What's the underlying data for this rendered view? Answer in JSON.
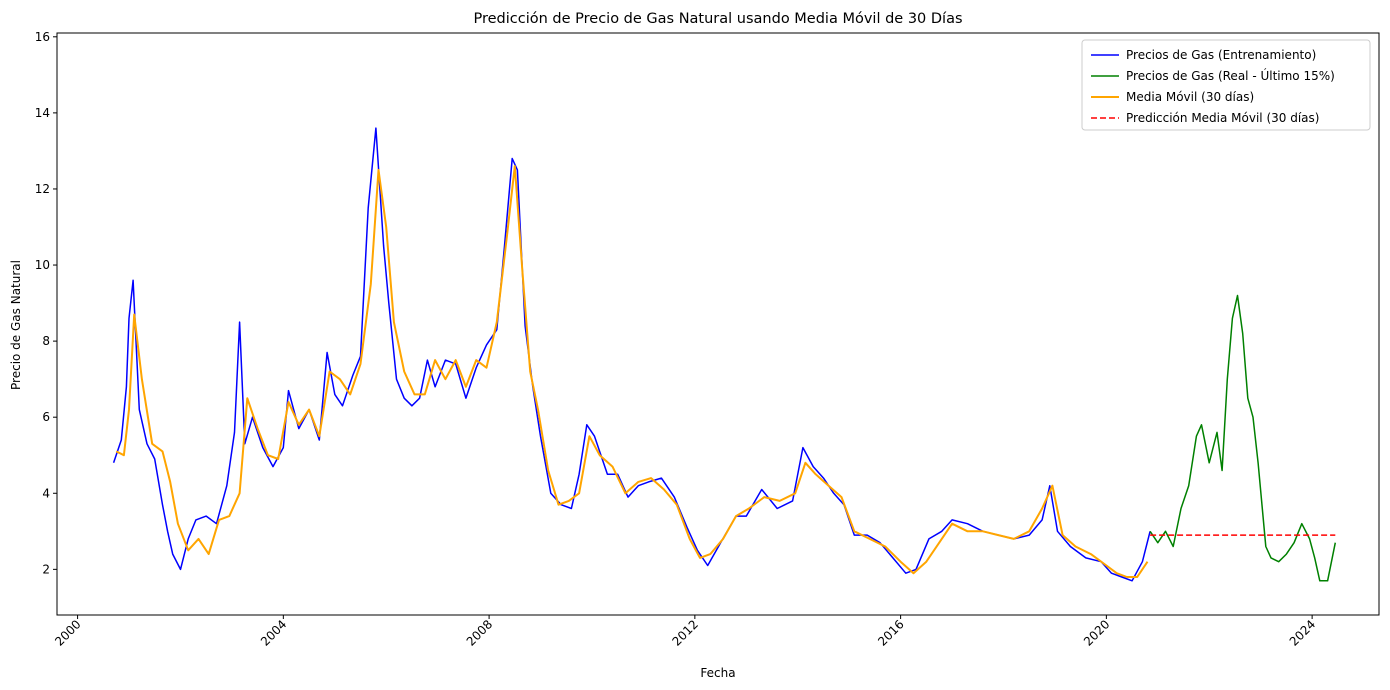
{
  "chart_data": {
    "type": "line",
    "title": "Predicción de Precio de Gas Natural usando Media Móvil de 30 Días",
    "xlabel": "Fecha",
    "ylabel": "Precio de Gas Natural",
    "xlim": [
      1999.6,
      2025.3
    ],
    "ylim": [
      0.8,
      16.1
    ],
    "xticks": [
      2000,
      2004,
      2008,
      2012,
      2016,
      2020,
      2024
    ],
    "xtick_labels": [
      "2000",
      "2004",
      "2008",
      "2012",
      "2016",
      "2020",
      "2024"
    ],
    "yticks": [
      2,
      4,
      6,
      8,
      10,
      12,
      14,
      16
    ],
    "ytick_labels": [
      "2",
      "4",
      "6",
      "8",
      "10",
      "12",
      "14",
      "16"
    ],
    "grid": false,
    "legend_position": "top-right",
    "series": [
      {
        "name": "Precios de Gas (Entrenamiento)",
        "color": "#0000ff",
        "style": "solid",
        "x": [
          2000.7,
          2000.85,
          2000.95,
          2001.0,
          2001.08,
          2001.2,
          2001.35,
          2001.5,
          2001.65,
          2001.75,
          2001.85,
          2002.0,
          2002.15,
          2002.3,
          2002.5,
          2002.7,
          2002.9,
          2003.05,
          2003.15,
          2003.25,
          2003.4,
          2003.6,
          2003.8,
          2004.0,
          2004.1,
          2004.3,
          2004.5,
          2004.7,
          2004.85,
          2005.0,
          2005.15,
          2005.35,
          2005.5,
          2005.65,
          2005.8,
          2005.95,
          2006.05,
          2006.2,
          2006.35,
          2006.5,
          2006.65,
          2006.8,
          2006.95,
          2007.15,
          2007.35,
          2007.55,
          2007.75,
          2007.95,
          2008.15,
          2008.3,
          2008.45,
          2008.55,
          2008.7,
          2008.85,
          2009.0,
          2009.2,
          2009.4,
          2009.6,
          2009.75,
          2009.9,
          2010.05,
          2010.3,
          2010.5,
          2010.7,
          2010.9,
          2011.1,
          2011.35,
          2011.6,
          2011.85,
          2012.05,
          2012.25,
          2012.5,
          2012.8,
          2013.0,
          2013.3,
          2013.6,
          2013.9,
          2014.1,
          2014.3,
          2014.5,
          2014.7,
          2014.9,
          2015.1,
          2015.35,
          2015.6,
          2015.85,
          2016.1,
          2016.3,
          2016.55,
          2016.8,
          2017.0,
          2017.3,
          2017.6,
          2017.9,
          2018.2,
          2018.5,
          2018.75,
          2018.9,
          2019.05,
          2019.3,
          2019.6,
          2019.9,
          2020.1,
          2020.3,
          2020.5,
          2020.7,
          2020.85
        ],
        "y": [
          4.8,
          5.4,
          6.8,
          8.6,
          9.6,
          6.2,
          5.3,
          4.9,
          3.7,
          3.0,
          2.4,
          2.0,
          2.8,
          3.3,
          3.4,
          3.2,
          4.2,
          5.6,
          8.5,
          5.3,
          6.0,
          5.2,
          4.7,
          5.2,
          6.7,
          5.7,
          6.2,
          5.4,
          7.7,
          6.6,
          6.3,
          7.1,
          7.6,
          11.5,
          13.6,
          10.5,
          9.0,
          7.0,
          6.5,
          6.3,
          6.5,
          7.5,
          6.8,
          7.5,
          7.4,
          6.5,
          7.3,
          7.9,
          8.3,
          10.5,
          12.8,
          12.5,
          8.4,
          6.8,
          5.5,
          4.0,
          3.7,
          3.6,
          4.5,
          5.8,
          5.5,
          4.5,
          4.5,
          3.9,
          4.2,
          4.3,
          4.4,
          3.9,
          3.1,
          2.5,
          2.1,
          2.7,
          3.4,
          3.4,
          4.1,
          3.6,
          3.8,
          5.2,
          4.7,
          4.4,
          4.0,
          3.7,
          2.9,
          2.9,
          2.7,
          2.3,
          1.9,
          2.0,
          2.8,
          3.0,
          3.3,
          3.2,
          3.0,
          2.9,
          2.8,
          2.9,
          3.3,
          4.2,
          3.0,
          2.6,
          2.3,
          2.2,
          1.9,
          1.8,
          1.7,
          2.2,
          3.0
        ]
      },
      {
        "name": "Precios de Gas (Real - Último 15%)",
        "color": "#008000",
        "style": "solid",
        "x": [
          2020.85,
          2021.0,
          2021.15,
          2021.3,
          2021.45,
          2021.6,
          2021.75,
          2021.85,
          2022.0,
          2022.15,
          2022.25,
          2022.35,
          2022.45,
          2022.55,
          2022.65,
          2022.75,
          2022.85,
          2022.95,
          2023.1,
          2023.2,
          2023.35,
          2023.5,
          2023.65,
          2023.8,
          2023.95,
          2024.05,
          2024.15,
          2024.3,
          2024.45
        ],
        "y": [
          3.0,
          2.7,
          3.0,
          2.6,
          3.6,
          4.2,
          5.5,
          5.8,
          4.8,
          5.6,
          4.6,
          7.0,
          8.6,
          9.2,
          8.2,
          6.5,
          6.0,
          4.8,
          2.6,
          2.3,
          2.2,
          2.4,
          2.7,
          3.2,
          2.8,
          2.3,
          1.7,
          1.7,
          2.7
        ]
      },
      {
        "name": "Media Móvil (30 días)",
        "color": "#ffa500",
        "style": "solid",
        "x": [
          2000.75,
          2000.9,
          2001.0,
          2001.1,
          2001.25,
          2001.45,
          2001.65,
          2001.8,
          2001.95,
          2002.15,
          2002.35,
          2002.55,
          2002.75,
          2002.95,
          2003.15,
          2003.3,
          2003.5,
          2003.7,
          2003.9,
          2004.1,
          2004.3,
          2004.5,
          2004.7,
          2004.9,
          2005.1,
          2005.3,
          2005.5,
          2005.7,
          2005.85,
          2006.0,
          2006.15,
          2006.35,
          2006.55,
          2006.75,
          2006.95,
          2007.15,
          2007.35,
          2007.55,
          2007.75,
          2007.95,
          2008.15,
          2008.35,
          2008.5,
          2008.65,
          2008.8,
          2008.95,
          2009.15,
          2009.35,
          2009.55,
          2009.75,
          2009.95,
          2010.15,
          2010.4,
          2010.65,
          2010.9,
          2011.15,
          2011.4,
          2011.65,
          2011.9,
          2012.1,
          2012.3,
          2012.55,
          2012.8,
          2013.05,
          2013.35,
          2013.65,
          2013.95,
          2014.15,
          2014.35,
          2014.6,
          2014.85,
          2015.1,
          2015.4,
          2015.7,
          2016.0,
          2016.25,
          2016.5,
          2016.75,
          2017.0,
          2017.3,
          2017.6,
          2017.9,
          2018.2,
          2018.5,
          2018.75,
          2018.95,
          2019.15,
          2019.4,
          2019.7,
          2020.0,
          2020.2,
          2020.4,
          2020.6,
          2020.8
        ],
        "y": [
          5.1,
          5.0,
          6.2,
          8.7,
          7.0,
          5.3,
          5.1,
          4.3,
          3.2,
          2.5,
          2.8,
          2.4,
          3.3,
          3.4,
          4.0,
          6.5,
          5.7,
          5.0,
          4.9,
          6.4,
          5.8,
          6.2,
          5.5,
          7.2,
          7.0,
          6.6,
          7.4,
          9.5,
          12.5,
          11.0,
          8.5,
          7.2,
          6.6,
          6.6,
          7.5,
          7.0,
          7.5,
          6.8,
          7.5,
          7.3,
          8.5,
          10.8,
          12.6,
          9.8,
          7.2,
          6.2,
          4.6,
          3.7,
          3.8,
          4.0,
          5.5,
          5.0,
          4.7,
          4.0,
          4.3,
          4.4,
          4.1,
          3.7,
          2.8,
          2.3,
          2.4,
          2.8,
          3.4,
          3.6,
          3.9,
          3.8,
          4.0,
          4.8,
          4.5,
          4.2,
          3.9,
          3.0,
          2.8,
          2.6,
          2.2,
          1.9,
          2.2,
          2.7,
          3.2,
          3.0,
          3.0,
          2.9,
          2.8,
          3.0,
          3.6,
          4.2,
          2.9,
          2.6,
          2.4,
          2.1,
          1.9,
          1.8,
          1.8,
          2.2
        ]
      },
      {
        "name": "Predicción Media Móvil (30 días)",
        "color": "#ff0000",
        "style": "dashed",
        "x": [
          2020.85,
          2024.45
        ],
        "y": [
          2.9,
          2.9
        ]
      }
    ]
  }
}
